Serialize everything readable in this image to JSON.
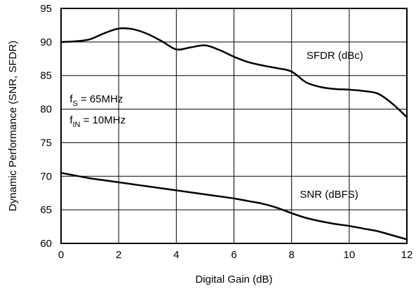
{
  "chart_data": {
    "type": "line",
    "title": "",
    "xlabel": "Digital Gain (dB)",
    "ylabel": "Dynamic Performance (SNR, SFDR)",
    "xlim": [
      0,
      12
    ],
    "ylim": [
      60,
      95
    ],
    "x_ticks": [
      0,
      2,
      4,
      6,
      8,
      10,
      12
    ],
    "y_ticks": [
      60,
      65,
      70,
      75,
      80,
      85,
      90,
      95
    ],
    "grid": true,
    "legend": "none",
    "series": [
      {
        "name": "SFDR (dBc)",
        "x": [
          0,
          0.5,
          1.0,
          1.5,
          2.0,
          2.5,
          3.0,
          3.5,
          4.0,
          4.5,
          5.0,
          5.5,
          6.0,
          6.5,
          7.0,
          7.5,
          8.0,
          8.5,
          9.0,
          9.5,
          10.0,
          10.5,
          11.0,
          11.5,
          12.0
        ],
        "y": [
          90.0,
          90.1,
          90.4,
          91.3,
          92.0,
          91.9,
          91.2,
          90.1,
          88.9,
          89.2,
          89.5,
          88.8,
          87.8,
          87.0,
          86.5,
          86.1,
          85.6,
          84.0,
          83.3,
          83.0,
          82.9,
          82.7,
          82.3,
          80.8,
          78.8
        ]
      },
      {
        "name": "SNR (dBFS)",
        "x": [
          0,
          0.5,
          1.0,
          1.5,
          2.0,
          2.5,
          3.0,
          3.5,
          4.0,
          4.5,
          5.0,
          5.5,
          6.0,
          6.5,
          7.0,
          7.5,
          8.0,
          8.5,
          9.0,
          9.5,
          10.0,
          10.5,
          11.0,
          11.5,
          12.0
        ],
        "y": [
          70.5,
          70.1,
          69.7,
          69.4,
          69.1,
          68.8,
          68.5,
          68.2,
          67.9,
          67.6,
          67.3,
          67.0,
          66.7,
          66.3,
          65.9,
          65.3,
          64.5,
          63.8,
          63.3,
          62.9,
          62.6,
          62.2,
          61.8,
          61.2,
          60.6
        ]
      }
    ],
    "annotations": {
      "series_labels": [
        {
          "text": "SFDR (dBc)",
          "x": 9.5,
          "y": 88
        },
        {
          "text": "SNR (dBFS)",
          "x": 9.3,
          "y": 67.3
        }
      ],
      "conditions": [
        {
          "main": "f",
          "sub": "S",
          "rest": " = 65MHz",
          "x": 0.3,
          "y": 81.5
        },
        {
          "main": "f",
          "sub": "IN",
          "rest": " = 10MHz",
          "x": 0.3,
          "y": 78.4
        }
      ]
    }
  }
}
